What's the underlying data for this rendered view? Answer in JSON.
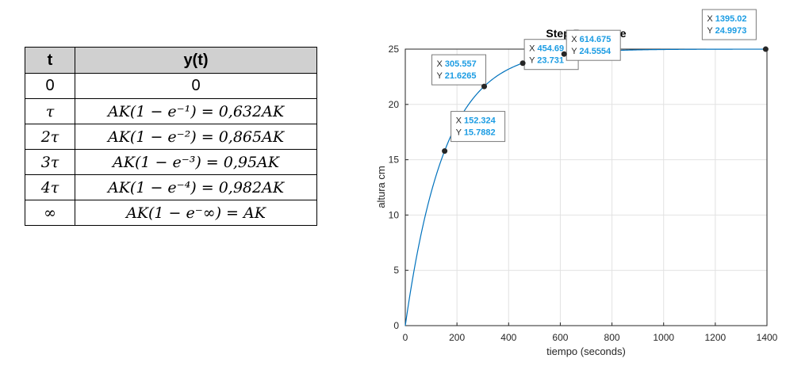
{
  "table": {
    "headers": [
      "t",
      "y(t)"
    ],
    "rows": [
      {
        "t": "0",
        "y": "0"
      },
      {
        "t": "τ",
        "y": "AK(1 − e⁻¹) = 0,632AK"
      },
      {
        "t": "2τ",
        "y": "AK(1 − e⁻²) = 0,865AK"
      },
      {
        "t": "3τ",
        "y": "AK(1 − e⁻³) = 0,95AK"
      },
      {
        "t": "4τ",
        "y": "AK(1 − e⁻⁴) = 0,982AK"
      },
      {
        "t": "∞",
        "y": "AK(1 − e⁻∞) = AK"
      }
    ]
  },
  "chart_data": {
    "type": "line",
    "title": "Step Response",
    "xlabel": "tiempo (seconds)",
    "ylabel": "altura cm",
    "xlim": [
      0,
      1400
    ],
    "ylim": [
      0,
      25
    ],
    "xticks": [
      0,
      200,
      400,
      600,
      800,
      1000,
      1200,
      1400
    ],
    "yticks": [
      0,
      5,
      10,
      15,
      20,
      25
    ],
    "grid": true,
    "series": [
      {
        "model": {
          "final_value": 25,
          "time_constant": 152.324
        },
        "x_range": [
          0,
          1395.02
        ],
        "color": "#0072bd"
      }
    ],
    "data_tips": [
      {
        "x": "152.324",
        "y": "15.7882"
      },
      {
        "x": "305.557",
        "y": "21.6265"
      },
      {
        "x": "454.69",
        "y": "23.731"
      },
      {
        "x": "614.675",
        "y": "24.5554"
      },
      {
        "x": "1395.02",
        "y": "24.9973"
      }
    ],
    "tip_label_color": "#1b9ce3"
  }
}
